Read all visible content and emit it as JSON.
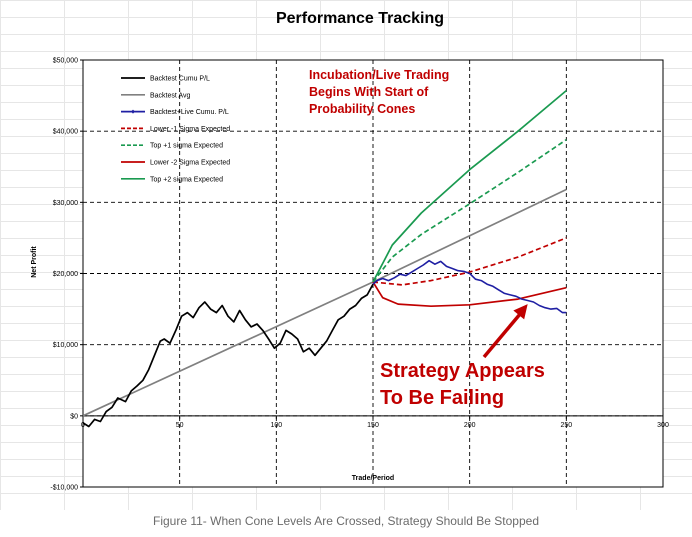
{
  "caption": "Figure 11- When Cone Levels Are Crossed, Strategy Should Be Stopped",
  "chart_data": {
    "type": "line",
    "title": "Performance Tracking",
    "xlabel": "Trade/Period",
    "ylabel": "Net Profit",
    "xlim": [
      0,
      300
    ],
    "ylim": [
      -10000,
      50000
    ],
    "x_ticks": [
      0,
      50,
      100,
      150,
      200,
      250,
      300
    ],
    "x_tick_labels": [
      "0",
      "50",
      "100",
      "150",
      "200",
      "250",
      "300"
    ],
    "y_ticks": [
      -10000,
      0,
      10000,
      20000,
      30000,
      40000,
      50000
    ],
    "y_tick_labels": [
      "-$10,000",
      "$0",
      "$10,000",
      "$20,000",
      "$30,000",
      "$40,000",
      "$50,000"
    ],
    "grid": true,
    "legend_position": "top-left",
    "series": [
      {
        "name": "Backtest Cumu P/L",
        "color": "#000000",
        "style": "solid",
        "points": [
          [
            0,
            -1000
          ],
          [
            3,
            -1500
          ],
          [
            6,
            -500
          ],
          [
            9,
            -800
          ],
          [
            12,
            600
          ],
          [
            15,
            1200
          ],
          [
            18,
            2500
          ],
          [
            22,
            2000
          ],
          [
            25,
            3500
          ],
          [
            28,
            4200
          ],
          [
            31,
            5000
          ],
          [
            34,
            6500
          ],
          [
            37,
            8500
          ],
          [
            40,
            10500
          ],
          [
            42,
            10800
          ],
          [
            45,
            10200
          ],
          [
            48,
            12000
          ],
          [
            51,
            14000
          ],
          [
            54,
            14500
          ],
          [
            57,
            13800
          ],
          [
            60,
            15200
          ],
          [
            63,
            16000
          ],
          [
            66,
            15000
          ],
          [
            69,
            14500
          ],
          [
            72,
            15500
          ],
          [
            75,
            14000
          ],
          [
            78,
            13200
          ],
          [
            81,
            14800
          ],
          [
            84,
            13500
          ],
          [
            87,
            12500
          ],
          [
            90,
            12900
          ],
          [
            93,
            12000
          ],
          [
            96,
            10800
          ],
          [
            99,
            9500
          ],
          [
            102,
            10200
          ],
          [
            105,
            12000
          ],
          [
            108,
            11500
          ],
          [
            111,
            10800
          ],
          [
            114,
            9000
          ],
          [
            117,
            9500
          ],
          [
            120,
            8500
          ],
          [
            123,
            9500
          ],
          [
            126,
            10500
          ],
          [
            129,
            12000
          ],
          [
            132,
            13500
          ],
          [
            135,
            14000
          ],
          [
            138,
            15000
          ],
          [
            141,
            15500
          ],
          [
            144,
            16500
          ],
          [
            147,
            17000
          ],
          [
            150,
            18500
          ]
        ]
      },
      {
        "name": "Backtest Avg",
        "color": "#808080",
        "style": "solid",
        "points": [
          [
            0,
            0
          ],
          [
            150,
            18800
          ],
          [
            250,
            31800
          ]
        ]
      },
      {
        "name": "Backtest+Live Cumu. P/L",
        "color": "#1f1fa3",
        "style": "solid-marker",
        "points": [
          [
            150,
            18500
          ],
          [
            152,
            19000
          ],
          [
            155,
            19300
          ],
          [
            158,
            19000
          ],
          [
            161,
            19400
          ],
          [
            164,
            19900
          ],
          [
            167,
            19700
          ],
          [
            170,
            20200
          ],
          [
            173,
            20700
          ],
          [
            176,
            21200
          ],
          [
            179,
            21800
          ],
          [
            182,
            21300
          ],
          [
            185,
            21700
          ],
          [
            188,
            21000
          ],
          [
            191,
            20700
          ],
          [
            194,
            20400
          ],
          [
            197,
            20300
          ],
          [
            200,
            20000
          ],
          [
            203,
            19200
          ],
          [
            206,
            19000
          ],
          [
            209,
            18500
          ],
          [
            212,
            18200
          ],
          [
            215,
            17700
          ],
          [
            218,
            17200
          ],
          [
            221,
            17000
          ],
          [
            224,
            16800
          ],
          [
            227,
            16400
          ],
          [
            230,
            16200
          ],
          [
            233,
            16000
          ],
          [
            236,
            15500
          ],
          [
            239,
            15200
          ],
          [
            242,
            15000
          ],
          [
            245,
            15100
          ],
          [
            248,
            14500
          ],
          [
            250,
            14500
          ]
        ]
      },
      {
        "name": "Lower -1 Sigma Expected",
        "color": "#c00000",
        "style": "dashed",
        "points": [
          [
            150,
            18800
          ],
          [
            165,
            18400
          ],
          [
            180,
            19000
          ],
          [
            200,
            20200
          ],
          [
            225,
            22300
          ],
          [
            250,
            25000
          ]
        ]
      },
      {
        "name": "Top +1 sigma Expected",
        "color": "#1a9a50",
        "style": "dashed",
        "points": [
          [
            150,
            18800
          ],
          [
            160,
            22300
          ],
          [
            175,
            25500
          ],
          [
            200,
            29800
          ],
          [
            225,
            34200
          ],
          [
            250,
            38800
          ]
        ]
      },
      {
        "name": "Lower -2 Sigma Expected",
        "color": "#c00000",
        "style": "solid",
        "points": [
          [
            150,
            18800
          ],
          [
            155,
            16600
          ],
          [
            163,
            15700
          ],
          [
            180,
            15400
          ],
          [
            200,
            15600
          ],
          [
            225,
            16400
          ],
          [
            250,
            18000
          ]
        ]
      },
      {
        "name": "Top +2 sigma Expected",
        "color": "#1a9a50",
        "style": "solid",
        "points": [
          [
            150,
            18800
          ],
          [
            160,
            24000
          ],
          [
            175,
            28500
          ],
          [
            200,
            34600
          ],
          [
            225,
            40000
          ],
          [
            250,
            45700
          ]
        ]
      }
    ],
    "annotations": [
      {
        "text_lines": [
          "Incubation/Live Trading",
          "Begins With Start of",
          "Probability Cones"
        ],
        "color": "#c00000"
      },
      {
        "text_lines": [
          "Strategy Appears",
          "To Be Failing"
        ],
        "color": "#c00000",
        "arrow_to": [
          230,
          15700
        ]
      }
    ]
  }
}
